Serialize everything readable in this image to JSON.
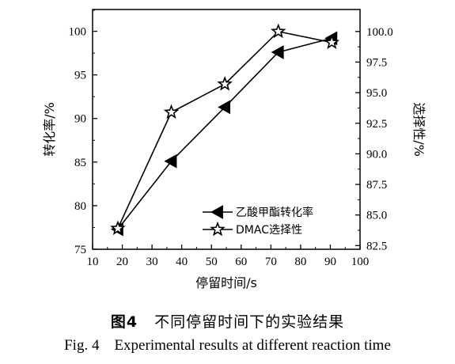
{
  "chart_data": {
    "type": "line",
    "xlabel": "停留时间/s",
    "xlim": [
      10,
      100
    ],
    "xticks": [
      10,
      20,
      30,
      40,
      50,
      60,
      70,
      80,
      90,
      100
    ],
    "ylabel_left": "转化率/%",
    "ylim_left": [
      75,
      102.5
    ],
    "yticks_left": [
      75,
      80,
      85,
      90,
      95,
      100
    ],
    "ylabel_right": "选择性/%",
    "ylim_right": [
      82.2,
      101.8
    ],
    "yticks_right": [
      "82.5",
      "85.0",
      "87.5",
      "90.0",
      "92.5",
      "95.0",
      "97.5",
      "100.0"
    ],
    "legend_position": "lower-right",
    "grid": false,
    "series": [
      {
        "name": "乙酸甲酯转化率",
        "axis": "left",
        "marker": "left-triangle-filled",
        "x": [
          18.5,
          36.5,
          54.5,
          72.5,
          90.5
        ],
        "y": [
          77.3,
          85.1,
          91.3,
          97.6,
          99.2
        ]
      },
      {
        "name": "DMAC选择性",
        "axis": "right",
        "marker": "star-open",
        "x": [
          18.5,
          36.5,
          54.5,
          72.5,
          90.5
        ],
        "y": [
          83.9,
          93.4,
          95.7,
          100.0,
          99.1
        ]
      }
    ]
  },
  "caption": {
    "zh_label": "图4",
    "zh_text": "不同停留时间下的实验结果",
    "en": "Fig. 4    Experimental results at different reaction time"
  }
}
